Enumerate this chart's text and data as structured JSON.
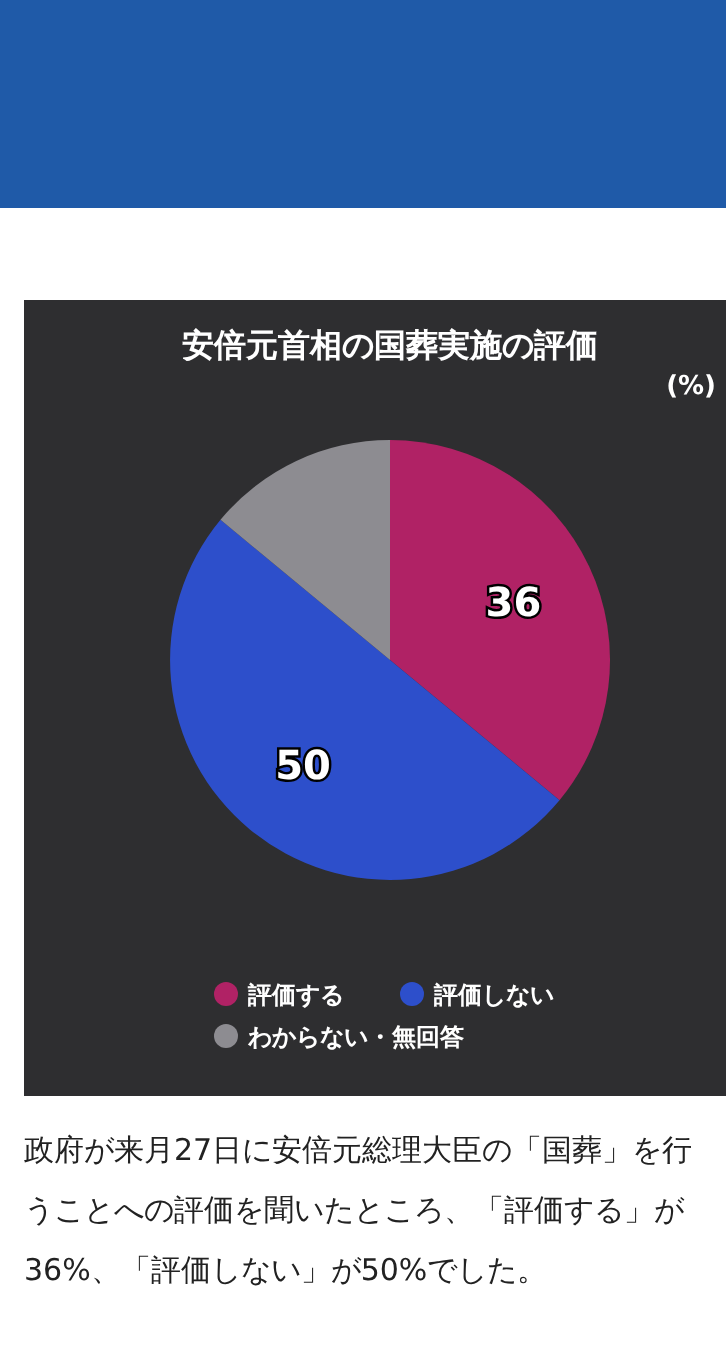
{
  "chart_data": {
    "type": "pie",
    "title": "安倍元首相の国葬実施の評価",
    "categories": [
      "評価する",
      "評価しない",
      "わからない・無回答"
    ],
    "values": [
      36,
      50,
      14
    ],
    "colors": [
      "#b02265",
      "#2d4fcb",
      "#8d8c91"
    ],
    "value_labels": [
      "36",
      "50",
      null
    ],
    "legend": "bottom",
    "annotations": [
      "(%)",
      "政府が来月27日に安倍元総理大臣の「国葬」を行うことへの評価を聞いたところ、「評価する」が36%、「評価しない」が50%でした。"
    ]
  }
}
